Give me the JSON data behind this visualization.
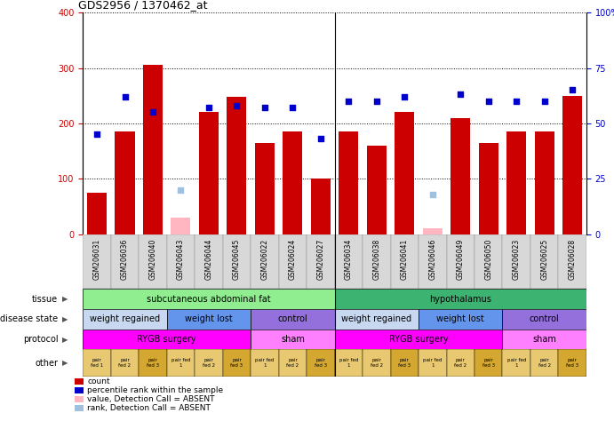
{
  "title": "GDS2956 / 1370462_at",
  "samples": [
    "GSM206031",
    "GSM206036",
    "GSM206040",
    "GSM206043",
    "GSM206044",
    "GSM206045",
    "GSM206022",
    "GSM206024",
    "GSM206027",
    "GSM206034",
    "GSM206038",
    "GSM206041",
    "GSM206046",
    "GSM206049",
    "GSM206050",
    "GSM206023",
    "GSM206025",
    "GSM206028"
  ],
  "bar_values": [
    75,
    185,
    305,
    0,
    220,
    248,
    165,
    185,
    100,
    185,
    160,
    220,
    10,
    210,
    165,
    185,
    185,
    250
  ],
  "bar_absent": [
    false,
    false,
    false,
    true,
    false,
    false,
    false,
    false,
    false,
    false,
    false,
    false,
    true,
    false,
    false,
    false,
    false,
    false
  ],
  "absent_values": [
    0,
    0,
    0,
    30,
    0,
    0,
    0,
    0,
    0,
    0,
    0,
    0,
    10,
    0,
    0,
    0,
    0,
    0
  ],
  "pct_values": [
    45,
    62,
    55,
    0,
    57,
    58,
    57,
    57,
    43,
    60,
    60,
    62,
    0,
    63,
    60,
    60,
    60,
    65
  ],
  "pct_absent": [
    false,
    false,
    false,
    true,
    false,
    false,
    false,
    false,
    false,
    false,
    false,
    false,
    true,
    false,
    false,
    false,
    false,
    false
  ],
  "absent_pct": [
    0,
    0,
    0,
    20,
    0,
    0,
    0,
    0,
    0,
    0,
    0,
    0,
    18,
    0,
    0,
    0,
    0,
    0
  ],
  "ylim_left": [
    0,
    400
  ],
  "ylim_right": [
    0,
    100
  ],
  "yticks_left": [
    0,
    100,
    200,
    300,
    400
  ],
  "yticks_right": [
    0,
    25,
    50,
    75,
    100
  ],
  "ytick_labels_right": [
    "0",
    "25",
    "50",
    "75",
    "100%"
  ],
  "tissue_groups": [
    {
      "label": "subcutaneous abdominal fat",
      "start": 0,
      "end": 9,
      "color": "#90EE90"
    },
    {
      "label": "hypothalamus",
      "start": 9,
      "end": 18,
      "color": "#3CB371"
    }
  ],
  "disease_state_groups": [
    {
      "label": "weight regained",
      "start": 0,
      "end": 3,
      "color": "#C8D8F0"
    },
    {
      "label": "weight lost",
      "start": 3,
      "end": 6,
      "color": "#6495ED"
    },
    {
      "label": "control",
      "start": 6,
      "end": 9,
      "color": "#9370DB"
    },
    {
      "label": "weight regained",
      "start": 9,
      "end": 12,
      "color": "#C8D8F0"
    },
    {
      "label": "weight lost",
      "start": 12,
      "end": 15,
      "color": "#6495ED"
    },
    {
      "label": "control",
      "start": 15,
      "end": 18,
      "color": "#9370DB"
    }
  ],
  "protocol_groups": [
    {
      "label": "RYGB surgery",
      "start": 0,
      "end": 6,
      "color": "#FF00FF"
    },
    {
      "label": "sham",
      "start": 6,
      "end": 9,
      "color": "#FF80FF"
    },
    {
      "label": "RYGB surgery",
      "start": 9,
      "end": 15,
      "color": "#FF00FF"
    },
    {
      "label": "sham",
      "start": 15,
      "end": 18,
      "color": "#FF80FF"
    }
  ],
  "other_labels": [
    "pair\nfed 1",
    "pair\nfed 2",
    "pair\nfed 3",
    "pair fed\n1",
    "pair\nfed 2",
    "pair\nfed 3",
    "pair fed\n1",
    "pair\nfed 2",
    "pair\nfed 3",
    "pair fed\n1",
    "pair\nfed 2",
    "pair\nfed 3",
    "pair fed\n1",
    "pair\nfed 2",
    "pair\nfed 3",
    "pair fed\n1",
    "pair\nfed 2",
    "pair\nfed 3"
  ],
  "other_colors": [
    "#E8C870",
    "#E8C870",
    "#D4A830",
    "#E8C870",
    "#E8C870",
    "#D4A830",
    "#E8C870",
    "#E8C870",
    "#D4A830",
    "#E8C870",
    "#E8C870",
    "#D4A830",
    "#E8C870",
    "#E8C870",
    "#D4A830",
    "#E8C870",
    "#E8C870",
    "#D4A830"
  ],
  "bar_color": "#CC0000",
  "absent_bar_color": "#FFB6C1",
  "dot_color": "#0000CC",
  "absent_dot_color": "#A0C0E0",
  "grid_color": "#000000",
  "bg_color": "#FFFFFF",
  "axis_label_color_left": "#CC0000",
  "axis_label_color_right": "#0000CC",
  "xticklabel_bg": "#D8D8D8"
}
